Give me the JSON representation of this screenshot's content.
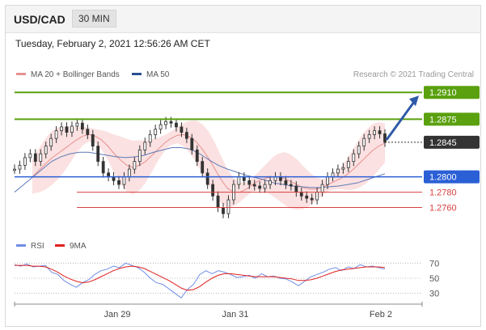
{
  "header": {
    "symbol": "USD/CAD",
    "timeframe": "30 MIN"
  },
  "datetime": "Tuesday, February 2, 2021 12:56:26 AM CET",
  "legend": {
    "ma20_label": "MA 20 + Bollinger Bands",
    "ma50_label": "MA 50",
    "credit": "Research © 2021 Trading Central",
    "rsi_label": "RSI",
    "ma9_label": "9MA"
  },
  "colors": {
    "resistance": "#5aa00f",
    "support": "#2a5fd6",
    "weak_support": "#d94040",
    "price": "#333333",
    "bollinger": "#f7c9c9",
    "ma20": "#e89090",
    "ma50": "#5e7bb8",
    "rsi": "#6f8ee6",
    "ma9": "#e02020",
    "arrow": "#2f5aa8"
  },
  "chart_data": [
    {
      "type": "candlestick",
      "title": "USD/CAD 30 MIN",
      "x_tick_labels": [
        "Jan 29",
        "Jan 31",
        "Feb 2"
      ],
      "ylim": [
        1.273,
        1.2925
      ],
      "levels": [
        {
          "value": 1.291,
          "label": "1.2910",
          "kind": "resistance"
        },
        {
          "value": 1.2875,
          "label": "1.2875",
          "kind": "resistance"
        },
        {
          "value": 1.2845,
          "label": "1.2845",
          "kind": "last"
        },
        {
          "value": 1.28,
          "label": "1.2800",
          "kind": "support"
        },
        {
          "value": 1.278,
          "label": "1.2780",
          "kind": "weak_support"
        },
        {
          "value": 1.276,
          "label": "1.2760",
          "kind": "weak_support"
        }
      ],
      "series": [
        {
          "name": "Price",
          "values": [
            1.281,
            1.2815,
            1.2825,
            1.283,
            1.282,
            1.283,
            1.284,
            1.285,
            1.286,
            1.2865,
            1.2858,
            1.2866,
            1.287,
            1.2862,
            1.2855,
            1.284,
            1.282,
            1.2805,
            1.28,
            1.2795,
            1.279,
            1.28,
            1.281,
            1.282,
            1.2835,
            1.2845,
            1.2855,
            1.2862,
            1.2868,
            1.2872,
            1.287,
            1.2865,
            1.2858,
            1.285,
            1.2835,
            1.282,
            1.2805,
            1.279,
            1.2775,
            1.276,
            1.2752,
            1.277,
            1.279,
            1.28,
            1.2795,
            1.279,
            1.2788,
            1.2785,
            1.279,
            1.2795,
            1.28,
            1.2795,
            1.279,
            1.2788,
            1.278,
            1.2775,
            1.2772,
            1.277,
            1.278,
            1.279,
            1.28,
            1.2805,
            1.281,
            1.2812,
            1.282,
            1.283,
            1.284,
            1.285,
            1.2855,
            1.286,
            1.2856,
            1.2845
          ]
        },
        {
          "name": "MA 20",
          "values": [
            1.28,
            1.2808,
            1.2816,
            1.2824,
            1.283,
            1.2836,
            1.2842,
            1.2848,
            1.2853,
            1.2855,
            1.2853,
            1.2848,
            1.284,
            1.283,
            1.2822,
            1.2815,
            1.2812,
            1.2815,
            1.282,
            1.2828,
            1.2836,
            1.2844,
            1.285,
            1.2854,
            1.2855,
            1.2852,
            1.2846,
            1.2836,
            1.2824,
            1.281,
            1.2796,
            1.2785,
            1.278,
            1.278,
            1.2784,
            1.279,
            1.2795,
            1.2798,
            1.28,
            1.28,
            1.2798,
            1.2794,
            1.279,
            1.2786,
            1.2784,
            1.2784,
            1.2786,
            1.279,
            1.2794,
            1.2798,
            1.2803,
            1.281,
            1.2818,
            1.2826,
            1.2834,
            1.284,
            1.2844
          ]
        },
        {
          "name": "MA 50",
          "values": [
            1.278,
            1.279,
            1.28,
            1.281,
            1.282,
            1.2826,
            1.283,
            1.2832,
            1.2832,
            1.283,
            1.2828,
            1.2826,
            1.2825,
            1.2826,
            1.2828,
            1.2832,
            1.2835,
            1.2838,
            1.2838,
            1.2836,
            1.283,
            1.2822,
            1.2815,
            1.281,
            1.2806,
            1.2802,
            1.2799,
            1.2796,
            1.2792,
            1.279,
            1.2788,
            1.2787,
            1.2786,
            1.2786,
            1.2787,
            1.2788,
            1.279,
            1.2792,
            1.2796,
            1.28,
            1.2804
          ]
        }
      ]
    },
    {
      "type": "line",
      "title": "RSI",
      "ylim": [
        20,
        80
      ],
      "y_ticks": [
        70,
        50,
        30
      ],
      "series": [
        {
          "name": "RSI",
          "values": [
            68,
            66,
            69,
            65,
            66,
            67,
            58,
            55,
            47,
            42,
            38,
            44,
            48,
            55,
            60,
            62,
            66,
            64,
            70,
            67,
            64,
            58,
            50,
            44,
            42,
            36,
            30,
            24,
            35,
            42,
            55,
            60,
            56,
            60,
            58,
            55,
            51,
            52,
            54,
            50,
            56,
            52,
            53,
            50,
            49,
            45,
            40,
            46,
            52,
            55,
            58,
            62,
            64,
            60,
            65,
            63,
            68,
            65,
            66,
            64,
            62
          ]
        },
        {
          "name": "9MA",
          "values": [
            67,
            67,
            67,
            66,
            66,
            65,
            62,
            58,
            53,
            49,
            46,
            44,
            45,
            48,
            52,
            56,
            60,
            63,
            65,
            66,
            65,
            63,
            59,
            55,
            51,
            47,
            42,
            37,
            34,
            35,
            39,
            45,
            50,
            54,
            56,
            56,
            55,
            54,
            53,
            52,
            52,
            52,
            52,
            51,
            50,
            49,
            47,
            47,
            48,
            50,
            53,
            56,
            59,
            61,
            62,
            63,
            64,
            65,
            65,
            65,
            64
          ]
        }
      ]
    }
  ]
}
